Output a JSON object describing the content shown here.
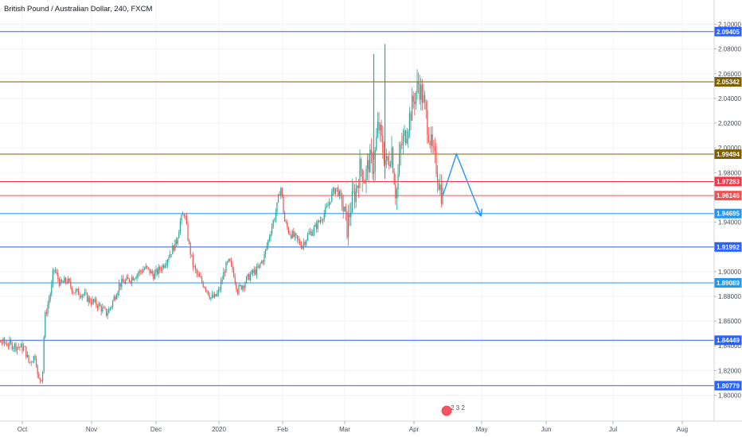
{
  "chart_data": {
    "type": "candlestick",
    "title": "British Pound / Australian Dollar, 240, FXCM",
    "y_axis": {
      "ylim": [
        1.7935,
        2.1075
      ],
      "ticks": [
        "2.10000",
        "2.08000",
        "2.06000",
        "2.04000",
        "2.02000",
        "2.00000",
        "1.98000",
        "1.96000",
        "1.94000",
        "1.92000",
        "1.90000",
        "1.88000",
        "1.86000",
        "1.84000",
        "1.82000",
        "1.80000"
      ]
    },
    "x_axis": {
      "labels": [
        "Oct",
        "Nov",
        "Dec",
        "2020",
        "Feb",
        "Mar",
        "Apr",
        "May",
        "Jun",
        "Jul",
        "Aug"
      ]
    },
    "levels": [
      {
        "label": "2.09405",
        "value": 2.09405,
        "color": "#2962ff"
      },
      {
        "label": "2.05342",
        "value": 2.05342,
        "color": "#7f5f00"
      },
      {
        "label": "1.99494",
        "value": 1.99494,
        "color": "#7f5f00"
      },
      {
        "label": "1.97283",
        "value": 1.97283,
        "color": "#f23645"
      },
      {
        "label": "1.96146",
        "value": 1.96146,
        "color": "#ef5350"
      },
      {
        "label": "1.94695",
        "value": 1.94695,
        "color": "#2196f3"
      },
      {
        "label": "1.91992",
        "value": 1.91992,
        "color": "#2962ff"
      },
      {
        "label": "1.89089",
        "value": 1.89089,
        "color": "#2196f3"
      },
      {
        "label": "1.84449",
        "value": 1.84449,
        "color": "#2962ff"
      },
      {
        "label": "1.80779",
        "value": 1.80779,
        "color": "#2962ff"
      }
    ],
    "price_path": [
      [
        "Sep 30",
        1.848
      ],
      [
        "Oct 2",
        1.838
      ],
      [
        "Oct 4",
        1.826
      ],
      [
        "Oct 7",
        1.833
      ],
      [
        "Oct 8",
        1.812
      ],
      [
        "Oct 10",
        1.815
      ],
      [
        "Oct 11",
        1.862
      ],
      [
        "Oct 14",
        1.886
      ],
      [
        "Oct 15",
        1.903
      ],
      [
        "Oct 18",
        1.89
      ],
      [
        "Oct 21",
        1.893
      ],
      [
        "Oct 24",
        1.884
      ],
      [
        "Oct 28",
        1.882
      ],
      [
        "Oct 31",
        1.877
      ],
      [
        "Nov 4",
        1.873
      ],
      [
        "Nov 8",
        1.866
      ],
      [
        "Nov 10",
        1.872
      ],
      [
        "Nov 14",
        1.89
      ],
      [
        "Nov 18",
        1.893
      ],
      [
        "Nov 22",
        1.898
      ],
      [
        "Nov 26",
        1.903
      ],
      [
        "Nov 30",
        1.897
      ],
      [
        "Dec 4",
        1.904
      ],
      [
        "Dec 8",
        1.915
      ],
      [
        "Dec 11",
        1.924
      ],
      [
        "Dec 13",
        1.941
      ],
      [
        "Dec 15",
        1.948
      ],
      [
        "Dec 17",
        1.924
      ],
      [
        "Dec 19",
        1.906
      ],
      [
        "Dec 21",
        1.898
      ],
      [
        "Dec 23",
        1.893
      ],
      [
        "Dec 26",
        1.886
      ],
      [
        "Dec 28",
        1.879
      ],
      [
        "Dec 30",
        1.879
      ],
      [
        "Jan 1",
        1.884
      ],
      [
        "Jan 4",
        1.903
      ],
      [
        "Jan 6",
        1.908
      ],
      [
        "Jan 8",
        1.9
      ],
      [
        "Jan 10",
        1.885
      ],
      [
        "Jan 13",
        1.89
      ],
      [
        "Jan 16",
        1.897
      ],
      [
        "Jan 20",
        1.902
      ],
      [
        "Jan 23",
        1.912
      ],
      [
        "Jan 26",
        1.932
      ],
      [
        "Jan 29",
        1.95
      ],
      [
        "Jan 31",
        1.97
      ],
      [
        "Feb 2",
        1.94
      ],
      [
        "Feb 4",
        1.932
      ],
      [
        "Feb 7",
        1.927
      ],
      [
        "Feb 10",
        1.921
      ],
      [
        "Feb 13",
        1.93
      ],
      [
        "Feb 16",
        1.935
      ],
      [
        "Feb 19",
        1.943
      ],
      [
        "Feb 22",
        1.952
      ],
      [
        "Feb 24",
        1.963
      ],
      [
        "Feb 26",
        1.968
      ],
      [
        "Feb 28",
        1.96
      ],
      [
        "Mar 1",
        1.945
      ],
      [
        "Mar 2",
        1.935
      ],
      [
        "Mar 4",
        1.955
      ],
      [
        "Mar 6",
        1.966
      ],
      [
        "Mar 8",
        1.985
      ],
      [
        "Mar 10",
        1.975
      ],
      [
        "Mar 12",
        1.99
      ],
      [
        "Mar 14",
        1.985
      ],
      [
        "Mar 16",
        2.02
      ],
      [
        "Mar 18",
        1.999
      ],
      [
        "Mar 20",
        1.985
      ],
      [
        "Mar 22",
        2.0
      ],
      [
        "Mar 24",
        1.96
      ],
      [
        "Mar 26",
        2.0
      ],
      [
        "Mar 28",
        2.01
      ],
      [
        "Mar 30",
        2.025
      ],
      [
        "Apr 1",
        2.04
      ],
      [
        "Apr 3",
        2.052
      ],
      [
        "Apr 5",
        2.04
      ],
      [
        "Apr 7",
        2.02
      ],
      [
        "Apr 9",
        1.998
      ],
      [
        "Apr 11",
        1.985
      ],
      [
        "Apr 13",
        1.965
      ],
      [
        "Apr 14",
        1.962
      ]
    ],
    "spikes": [
      {
        "date": "Mar 14",
        "high": 2.076,
        "low": 1.99
      },
      {
        "date": "Mar 19",
        "high": 2.084,
        "low": 1.975
      }
    ],
    "projection": {
      "color": "#2196f3",
      "points": [
        [
          "Apr 14",
          1.962
        ],
        [
          "Apr 20",
          1.995
        ],
        [
          "May 1",
          1.945
        ]
      ]
    },
    "annotation_badge": {
      "text": "2 3 2"
    },
    "colors": {
      "up": "#26a69a",
      "down": "#ef5350",
      "grid": "#f0f3fa",
      "axis_text": "#4a4f5c"
    }
  }
}
